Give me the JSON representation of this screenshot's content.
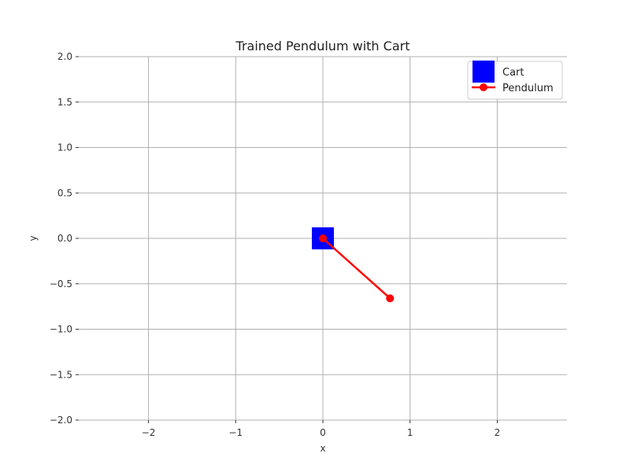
{
  "chart_data": {
    "type": "scatter",
    "title": "Trained Pendulum with Cart",
    "xlabel": "x",
    "ylabel": "y",
    "xlim": [
      -2.8,
      2.8
    ],
    "ylim": [
      -2.0,
      2.0
    ],
    "xticks": [
      -2,
      -1,
      0,
      1,
      2
    ],
    "xtick_labels": [
      "−2",
      "−1",
      "0",
      "1",
      "2"
    ],
    "yticks": [
      2.0,
      1.5,
      1.0,
      0.5,
      0.0,
      -0.5,
      -1.0,
      -1.5,
      -2.0
    ],
    "ytick_labels": [
      "2.0",
      "1.5",
      "1.0",
      "0.5",
      "0.0",
      "−0.5",
      "−1.0",
      "−1.5",
      "−2.0"
    ],
    "grid": true,
    "legend_position": "top-right",
    "series": [
      {
        "name": "Cart",
        "kind": "square-marker",
        "color": "#0000ff",
        "points": [
          [
            0.0,
            0.0
          ]
        ]
      },
      {
        "name": "Pendulum",
        "kind": "line-with-markers",
        "color": "#ff0000",
        "points": [
          [
            0.0,
            0.0
          ],
          [
            0.77,
            -0.66
          ]
        ]
      }
    ]
  }
}
